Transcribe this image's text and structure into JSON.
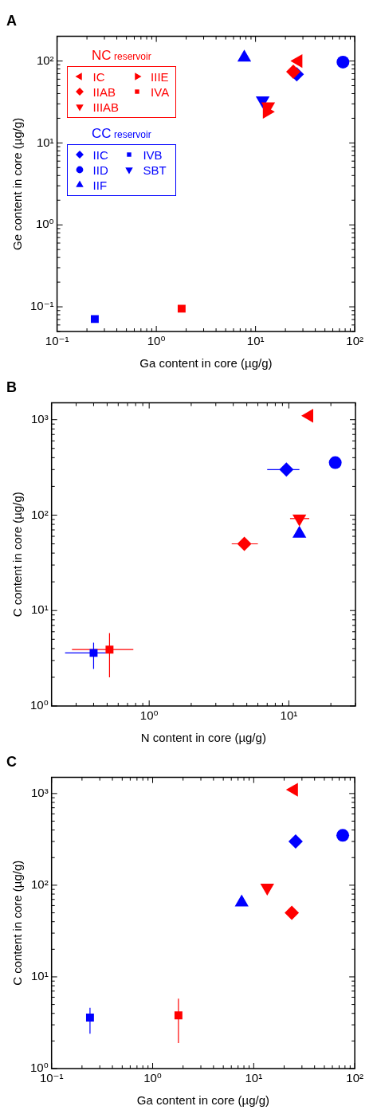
{
  "chart_data": [
    {
      "type": "scatter",
      "title": "A",
      "xlabel": "Ga content in core (µg/g)",
      "ylabel": "Ge content in core (µg/g)",
      "log": "xy",
      "legend": "top left",
      "annotations": [
        "NC reservoir",
        "CC reservoir"
      ],
      "xlim": [
        0.1,
        100
      ],
      "ylim": [
        0.05,
        200
      ],
      "xticks": [
        {
          "value": 0.1,
          "label": "10⁻¹"
        },
        {
          "value": 0.2,
          "label": null
        },
        {
          "value": 0.3,
          "label": null
        },
        {
          "value": 0.4,
          "label": null
        },
        {
          "value": 0.5,
          "label": null
        },
        {
          "value": 0.6,
          "label": null
        },
        {
          "value": 0.7,
          "label": null
        },
        {
          "value": 0.8,
          "label": null
        },
        {
          "value": 0.9,
          "label": null
        },
        {
          "value": 1,
          "label": "10⁰"
        },
        {
          "value": 2,
          "label": null
        },
        {
          "value": 3,
          "label": null
        },
        {
          "value": 4,
          "label": null
        },
        {
          "value": 5,
          "label": null
        },
        {
          "value": 6,
          "label": null
        },
        {
          "value": 7,
          "label": null
        },
        {
          "value": 8,
          "label": null
        },
        {
          "value": 9,
          "label": null
        },
        {
          "value": 10,
          "label": "10¹"
        },
        {
          "value": 20,
          "label": null
        },
        {
          "value": 30,
          "label": null
        },
        {
          "value": 40,
          "label": null
        },
        {
          "value": 50,
          "label": null
        },
        {
          "value": 60,
          "label": null
        },
        {
          "value": 70,
          "label": null
        },
        {
          "value": 80,
          "label": null
        },
        {
          "value": 90,
          "label": null
        },
        {
          "value": 100,
          "label": "10²"
        }
      ],
      "yticks": [
        {
          "value": 0.05,
          "label": null
        },
        {
          "value": 0.06,
          "label": null
        },
        {
          "value": 0.07,
          "label": null
        },
        {
          "value": 0.08,
          "label": null
        },
        {
          "value": 0.09,
          "label": null
        },
        {
          "value": 0.1,
          "label": "10⁻¹"
        },
        {
          "value": 0.2,
          "label": null
        },
        {
          "value": 0.3,
          "label": null
        },
        {
          "value": 0.4,
          "label": null
        },
        {
          "value": 0.5,
          "label": null
        },
        {
          "value": 0.6,
          "label": null
        },
        {
          "value": 0.7,
          "label": null
        },
        {
          "value": 0.8,
          "label": null
        },
        {
          "value": 0.9,
          "label": null
        },
        {
          "value": 1,
          "label": "10⁰"
        },
        {
          "value": 2,
          "label": null
        },
        {
          "value": 3,
          "label": null
        },
        {
          "value": 4,
          "label": null
        },
        {
          "value": 5,
          "label": null
        },
        {
          "value": 6,
          "label": null
        },
        {
          "value": 7,
          "label": null
        },
        {
          "value": 8,
          "label": null
        },
        {
          "value": 9,
          "label": null
        },
        {
          "value": 10,
          "label": "10¹"
        },
        {
          "value": 20,
          "label": null
        },
        {
          "value": 30,
          "label": null
        },
        {
          "value": 40,
          "label": null
        },
        {
          "value": 50,
          "label": null
        },
        {
          "value": 60,
          "label": null
        },
        {
          "value": 70,
          "label": null
        },
        {
          "value": 80,
          "label": null
        },
        {
          "value": 90,
          "label": null
        },
        {
          "value": 100,
          "label": "10²"
        },
        {
          "value": 200,
          "label": null
        }
      ],
      "series": [
        {
          "name": "IC",
          "color": "#ff0000",
          "marker": "triangle-left",
          "x": [
            27
          ],
          "values": [
            100
          ]
        },
        {
          "name": "IIIE",
          "color": "#ff0000",
          "marker": "triangle-right",
          "x": [
            13
          ],
          "values": [
            24
          ]
        },
        {
          "name": "IIAB",
          "color": "#ff0000",
          "marker": "diamond",
          "x": [
            24
          ],
          "values": [
            74
          ]
        },
        {
          "name": "IVA",
          "color": "#ff0000",
          "marker": "square",
          "x": [
            1.8
          ],
          "values": [
            0.095
          ]
        },
        {
          "name": "IIIAB",
          "color": "#ff0000",
          "marker": "triangle-down",
          "x": [
            13.4
          ],
          "values": [
            28
          ]
        },
        {
          "name": "IIC",
          "color": "#0000ff",
          "marker": "diamond",
          "x": [
            26
          ],
          "values": [
            69
          ]
        },
        {
          "name": "IVB",
          "color": "#0000ff",
          "marker": "square",
          "x": [
            0.24
          ],
          "values": [
            0.071
          ]
        },
        {
          "name": "IID",
          "color": "#0000ff",
          "marker": "circle",
          "x": [
            76
          ],
          "values": [
            97
          ]
        },
        {
          "name": "SBT",
          "color": "#0000ff",
          "marker": "triangle-down",
          "x": [
            11.8
          ],
          "values": [
            33
          ]
        },
        {
          "name": "IIF",
          "color": "#0000ff",
          "marker": "triangle",
          "x": [
            7.7
          ],
          "values": [
            110
          ]
        }
      ]
    },
    {
      "type": "scatter",
      "title": "B",
      "xlabel": "N content in core (µg/g)",
      "ylabel": "C content in core (µg/g)",
      "log": "xy",
      "xlim": [
        0.2,
        30
      ],
      "ylim": [
        1,
        1500
      ],
      "xticks": [
        {
          "value": 0.2,
          "label": null
        },
        {
          "value": 0.3,
          "label": null
        },
        {
          "value": 0.4,
          "label": null
        },
        {
          "value": 0.5,
          "label": null
        },
        {
          "value": 0.6,
          "label": null
        },
        {
          "value": 0.7,
          "label": null
        },
        {
          "value": 0.8,
          "label": null
        },
        {
          "value": 0.9,
          "label": null
        },
        {
          "value": 1,
          "label": "10⁰"
        },
        {
          "value": 2,
          "label": null
        },
        {
          "value": 3,
          "label": null
        },
        {
          "value": 4,
          "label": null
        },
        {
          "value": 5,
          "label": null
        },
        {
          "value": 6,
          "label": null
        },
        {
          "value": 7,
          "label": null
        },
        {
          "value": 8,
          "label": null
        },
        {
          "value": 9,
          "label": null
        },
        {
          "value": 10,
          "label": "10¹"
        },
        {
          "value": 20,
          "label": null
        },
        {
          "value": 30,
          "label": null
        }
      ],
      "yticks": [
        {
          "value": 1,
          "label": "10⁰"
        },
        {
          "value": 2,
          "label": null
        },
        {
          "value": 3,
          "label": null
        },
        {
          "value": 4,
          "label": null
        },
        {
          "value": 5,
          "label": null
        },
        {
          "value": 6,
          "label": null
        },
        {
          "value": 7,
          "label": null
        },
        {
          "value": 8,
          "label": null
        },
        {
          "value": 9,
          "label": null
        },
        {
          "value": 10,
          "label": "10¹"
        },
        {
          "value": 20,
          "label": null
        },
        {
          "value": 30,
          "label": null
        },
        {
          "value": 40,
          "label": null
        },
        {
          "value": 50,
          "label": null
        },
        {
          "value": 60,
          "label": null
        },
        {
          "value": 70,
          "label": null
        },
        {
          "value": 80,
          "label": null
        },
        {
          "value": 90,
          "label": null
        },
        {
          "value": 100,
          "label": "10²"
        },
        {
          "value": 200,
          "label": null
        },
        {
          "value": 300,
          "label": null
        },
        {
          "value": 400,
          "label": null
        },
        {
          "value": 500,
          "label": null
        },
        {
          "value": 600,
          "label": null
        },
        {
          "value": 700,
          "label": null
        },
        {
          "value": 800,
          "label": null
        },
        {
          "value": 900,
          "label": null
        },
        {
          "value": 1000,
          "label": "10³"
        }
      ],
      "series": [
        {
          "color": "#ff0000",
          "marker": "triangle-left",
          "x": [
            14
          ],
          "values": [
            1100
          ]
        },
        {
          "color": "#ff0000",
          "marker": "diamond",
          "x": [
            4.8
          ],
          "values": [
            50
          ],
          "xerrors": [
            [
              3.9,
              6.0
            ]
          ]
        },
        {
          "color": "#ff0000",
          "marker": "square",
          "x": [
            0.52
          ],
          "values": [
            3.9
          ],
          "errors": [
            [
              2.0,
              5.8
            ]
          ],
          "xerrors": [
            [
              0.28,
              0.77
            ]
          ]
        },
        {
          "color": "#ff0000",
          "marker": "triangle-down",
          "x": [
            11.9
          ],
          "values": [
            92
          ],
          "xerrors": [
            [
              10.2,
              14
            ]
          ]
        },
        {
          "color": "#0000ff",
          "marker": "diamond",
          "x": [
            9.6
          ],
          "values": [
            300
          ],
          "xerrors": [
            [
              7.0,
              11.9
            ]
          ]
        },
        {
          "color": "#0000ff",
          "marker": "square",
          "x": [
            0.4
          ],
          "values": [
            3.6
          ],
          "errors": [
            [
              2.45,
              4.6
            ]
          ],
          "xerrors": [
            [
              0.25,
              0.49
            ]
          ]
        },
        {
          "color": "#0000ff",
          "marker": "circle",
          "x": [
            21.5
          ],
          "values": [
            355
          ]
        },
        {
          "color": "#0000ff",
          "marker": "triangle",
          "x": [
            11.9
          ],
          "values": [
            64
          ]
        }
      ]
    },
    {
      "type": "scatter",
      "title": "C",
      "xlabel": "Ga content in core (µg/g)",
      "ylabel": "C content in core (µg/g)",
      "log": "xy",
      "xlim": [
        0.1,
        100
      ],
      "ylim": [
        1,
        1500
      ],
      "xticks": [
        {
          "value": 0.1,
          "label": "10⁻¹"
        },
        {
          "value": 0.2,
          "label": null
        },
        {
          "value": 0.3,
          "label": null
        },
        {
          "value": 0.4,
          "label": null
        },
        {
          "value": 0.5,
          "label": null
        },
        {
          "value": 0.6,
          "label": null
        },
        {
          "value": 0.7,
          "label": null
        },
        {
          "value": 0.8,
          "label": null
        },
        {
          "value": 0.9,
          "label": null
        },
        {
          "value": 1,
          "label": "10⁰"
        },
        {
          "value": 2,
          "label": null
        },
        {
          "value": 3,
          "label": null
        },
        {
          "value": 4,
          "label": null
        },
        {
          "value": 5,
          "label": null
        },
        {
          "value": 6,
          "label": null
        },
        {
          "value": 7,
          "label": null
        },
        {
          "value": 8,
          "label": null
        },
        {
          "value": 9,
          "label": null
        },
        {
          "value": 10,
          "label": "10¹"
        },
        {
          "value": 20,
          "label": null
        },
        {
          "value": 30,
          "label": null
        },
        {
          "value": 40,
          "label": null
        },
        {
          "value": 50,
          "label": null
        },
        {
          "value": 60,
          "label": null
        },
        {
          "value": 70,
          "label": null
        },
        {
          "value": 80,
          "label": null
        },
        {
          "value": 90,
          "label": null
        },
        {
          "value": 100,
          "label": "10²"
        }
      ],
      "yticks": [
        {
          "value": 1,
          "label": "10⁰"
        },
        {
          "value": 2,
          "label": null
        },
        {
          "value": 3,
          "label": null
        },
        {
          "value": 4,
          "label": null
        },
        {
          "value": 5,
          "label": null
        },
        {
          "value": 6,
          "label": null
        },
        {
          "value": 7,
          "label": null
        },
        {
          "value": 8,
          "label": null
        },
        {
          "value": 9,
          "label": null
        },
        {
          "value": 10,
          "label": "10¹"
        },
        {
          "value": 20,
          "label": null
        },
        {
          "value": 30,
          "label": null
        },
        {
          "value": 40,
          "label": null
        },
        {
          "value": 50,
          "label": null
        },
        {
          "value": 60,
          "label": null
        },
        {
          "value": 70,
          "label": null
        },
        {
          "value": 80,
          "label": null
        },
        {
          "value": 90,
          "label": null
        },
        {
          "value": 100,
          "label": "10²"
        },
        {
          "value": 200,
          "label": null
        },
        {
          "value": 300,
          "label": null
        },
        {
          "value": 400,
          "label": null
        },
        {
          "value": 500,
          "label": null
        },
        {
          "value": 600,
          "label": null
        },
        {
          "value": 700,
          "label": null
        },
        {
          "value": 800,
          "label": null
        },
        {
          "value": 900,
          "label": null
        },
        {
          "value": 1000,
          "label": "10³"
        }
      ],
      "series": [
        {
          "color": "#ff0000",
          "marker": "triangle-left",
          "x": [
            25
          ],
          "values": [
            1100
          ]
        },
        {
          "color": "#ff0000",
          "marker": "diamond",
          "x": [
            23.8
          ],
          "values": [
            50
          ]
        },
        {
          "color": "#ff0000",
          "marker": "square",
          "x": [
            1.8
          ],
          "values": [
            3.8
          ],
          "errors": [
            [
              1.9,
              5.8
            ]
          ]
        },
        {
          "color": "#ff0000",
          "marker": "triangle-down",
          "x": [
            13.6
          ],
          "values": [
            94
          ]
        },
        {
          "color": "#0000ff",
          "marker": "diamond",
          "x": [
            26
          ],
          "values": [
            300
          ]
        },
        {
          "color": "#0000ff",
          "marker": "square",
          "x": [
            0.24
          ],
          "values": [
            3.6
          ],
          "errors": [
            [
              2.4,
              4.6
            ]
          ]
        },
        {
          "color": "#0000ff",
          "marker": "circle",
          "x": [
            76
          ],
          "values": [
            350
          ]
        },
        {
          "color": "#0000ff",
          "marker": "triangle",
          "x": [
            7.6
          ],
          "values": [
            65
          ]
        }
      ]
    }
  ]
}
